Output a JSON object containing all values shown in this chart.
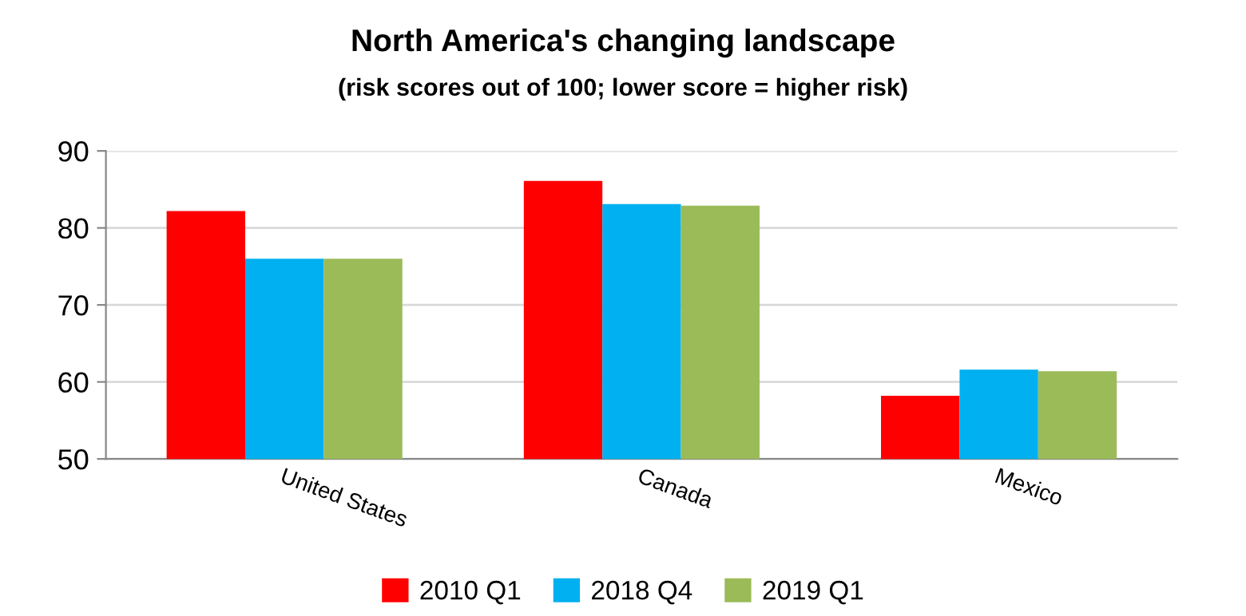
{
  "chart_data": {
    "type": "bar",
    "title": "North America's changing landscape",
    "subtitle": "(risk scores out of 100; lower score = higher risk)",
    "categories": [
      "United States",
      "Canada",
      "Mexico"
    ],
    "series": [
      {
        "name": "2010 Q1",
        "color": "#ff0000",
        "values": [
          82.2,
          86.1,
          58.2
        ]
      },
      {
        "name": "2018 Q4",
        "color": "#00b0f0",
        "values": [
          76.0,
          83.1,
          61.6
        ]
      },
      {
        "name": "2019 Q1",
        "color": "#9bbb59",
        "values": [
          76.0,
          82.9,
          61.4
        ]
      }
    ],
    "ylim": [
      50,
      90
    ],
    "yticks": [
      50,
      60,
      70,
      80,
      90
    ],
    "grid": "y",
    "legend": "bottom"
  }
}
